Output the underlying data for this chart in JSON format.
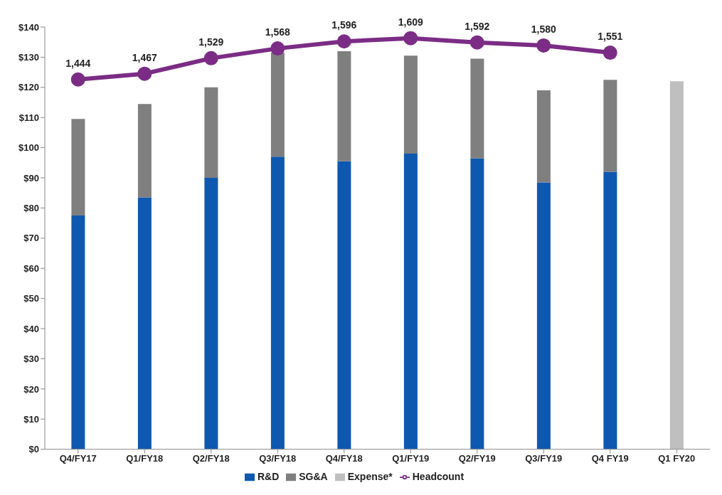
{
  "chart_data": {
    "type": "bar",
    "stacked": true,
    "categories": [
      "Q4/FY17",
      "Q1/FY18",
      "Q2/FY18",
      "Q3/FY18",
      "Q4/FY18",
      "Q1/FY19",
      "Q2/FY19",
      "Q3/FY19",
      "Q4 FY19",
      "Q1 FY20"
    ],
    "series": [
      {
        "name": "R&D",
        "color": "#0f58b0",
        "values": [
          77.5,
          83.5,
          90,
          97,
          95.5,
          98,
          96.5,
          88.5,
          92,
          null
        ]
      },
      {
        "name": "SG&A",
        "color": "#7f7f7f",
        "values": [
          32,
          31,
          30,
          34.5,
          36.5,
          32.5,
          33,
          30.5,
          30.5,
          null
        ]
      },
      {
        "name": "Expense*",
        "color": "#bfbfbf",
        "values": [
          null,
          null,
          null,
          null,
          null,
          null,
          null,
          null,
          null,
          122
        ]
      },
      {
        "name": "Headcount",
        "type": "line",
        "axis": "y2",
        "color": "#7b2c85",
        "marker": "circle",
        "value_labels": [
          "1,444",
          "1,467",
          "1,529",
          "1,568",
          "1,596",
          "1,609",
          "1,592",
          "1,580",
          "1,551",
          null
        ],
        "values": [
          1444,
          1467,
          1529,
          1568,
          1596,
          1609,
          1592,
          1580,
          1551,
          null
        ]
      }
    ],
    "ylim": [
      0,
      140
    ],
    "yticks": [
      {
        "value": 0,
        "label": "$0"
      },
      {
        "value": 10,
        "label": "$10"
      },
      {
        "value": 20,
        "label": "$20"
      },
      {
        "value": 30,
        "label": "$30"
      },
      {
        "value": 40,
        "label": "$40"
      },
      {
        "value": 50,
        "label": "$50"
      },
      {
        "value": 60,
        "label": "$60"
      },
      {
        "value": 70,
        "label": "$70"
      },
      {
        "value": 80,
        "label": "$80"
      },
      {
        "value": 90,
        "label": "$90"
      },
      {
        "value": 100,
        "label": "$100"
      },
      {
        "value": 110,
        "label": "$110"
      },
      {
        "value": 120,
        "label": "$120"
      },
      {
        "value": 130,
        "label": "$130"
      },
      {
        "value": 140,
        "label": "$140"
      }
    ],
    "tick_labels": "xy",
    "grid": false,
    "legend": "bottom"
  }
}
